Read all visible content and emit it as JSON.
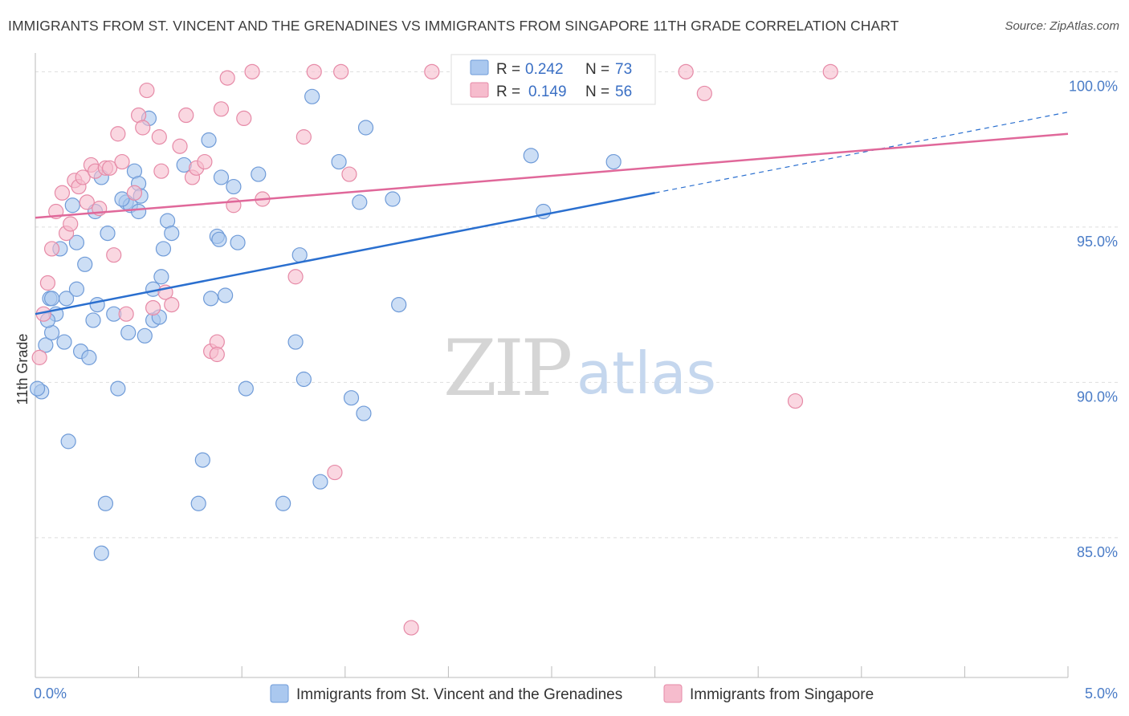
{
  "title": "IMMIGRANTS FROM ST. VINCENT AND THE GRENADINES VS IMMIGRANTS FROM SINGAPORE 11TH GRADE CORRELATION CHART",
  "source": "Source: ZipAtlas.com",
  "watermark": {
    "zip": "ZIP",
    "atlas": "atlas"
  },
  "legend_top": [
    {
      "r_label": "R =",
      "r_value": "0.242",
      "n_label": "N =",
      "n_value": "73"
    },
    {
      "r_label": "R =",
      "r_value": "0.149",
      "n_label": "N =",
      "n_value": "56"
    }
  ],
  "chart_data": {
    "type": "scatter",
    "title": "Immigrants from St. Vincent and the Grenadines vs Immigrants from Singapore 11th Grade Correlation Chart",
    "xlabel": "",
    "ylabel": "11th Grade",
    "xlim": [
      0,
      5
    ],
    "ylim": [
      80.5,
      100.5
    ],
    "x_tick_labels": [
      {
        "value": 0,
        "label": "0.0%"
      },
      {
        "value": 5,
        "label": "5.0%"
      }
    ],
    "y_tick_labels": [
      {
        "value": 85,
        "label": "85.0%"
      },
      {
        "value": 90,
        "label": "90.0%"
      },
      {
        "value": 95,
        "label": "95.0%"
      },
      {
        "value": 100,
        "label": "100.0%"
      }
    ],
    "series": [
      {
        "name": "Immigrants from St. Vincent and the Grenadines",
        "color": "#aac8ef",
        "edge": "#6f9bd8",
        "line_color": "#2a6fcf",
        "trend": {
          "x0": 0,
          "y0": 92.2,
          "x1": 3.0,
          "y1": 96.1,
          "extend_to": 5.0,
          "extend_y": 98.7
        },
        "points": [
          [
            0.03,
            89.7
          ],
          [
            0.05,
            91.2
          ],
          [
            0.07,
            92.7
          ],
          [
            0.08,
            91.6
          ],
          [
            0.08,
            92.7
          ],
          [
            0.1,
            92.2
          ],
          [
            0.12,
            94.3
          ],
          [
            0.14,
            91.3
          ],
          [
            0.15,
            92.7
          ],
          [
            0.18,
            95.7
          ],
          [
            0.2,
            94.5
          ],
          [
            0.2,
            93.0
          ],
          [
            0.22,
            91.0
          ],
          [
            0.24,
            93.8
          ],
          [
            0.26,
            90.8
          ],
          [
            0.28,
            92.0
          ],
          [
            0.29,
            95.5
          ],
          [
            0.3,
            92.5
          ],
          [
            0.32,
            96.6
          ],
          [
            0.35,
            94.8
          ],
          [
            0.38,
            92.2
          ],
          [
            0.4,
            89.8
          ],
          [
            0.44,
            95.8
          ],
          [
            0.45,
            91.6
          ],
          [
            0.46,
            95.7
          ],
          [
            0.48,
            96.8
          ],
          [
            0.5,
            95.5
          ],
          [
            0.5,
            96.4
          ],
          [
            0.51,
            96.0
          ],
          [
            0.53,
            91.5
          ],
          [
            0.55,
            98.5
          ],
          [
            0.57,
            93.0
          ],
          [
            0.57,
            92.0
          ],
          [
            0.6,
            92.1
          ],
          [
            0.61,
            93.4
          ],
          [
            0.62,
            94.3
          ],
          [
            0.64,
            95.2
          ],
          [
            0.66,
            94.8
          ],
          [
            0.72,
            97.0
          ],
          [
            0.79,
            86.1
          ],
          [
            0.81,
            87.5
          ],
          [
            0.84,
            97.8
          ],
          [
            0.85,
            92.7
          ],
          [
            0.88,
            94.7
          ],
          [
            0.89,
            94.6
          ],
          [
            0.9,
            96.6
          ],
          [
            0.92,
            92.8
          ],
          [
            0.96,
            96.3
          ],
          [
            0.98,
            94.5
          ],
          [
            1.02,
            89.8
          ],
          [
            1.08,
            96.7
          ],
          [
            1.2,
            86.1
          ],
          [
            1.26,
            91.3
          ],
          [
            1.28,
            94.1
          ],
          [
            1.3,
            90.1
          ],
          [
            1.34,
            99.2
          ],
          [
            1.38,
            86.8
          ],
          [
            1.47,
            97.1
          ],
          [
            1.53,
            89.5
          ],
          [
            1.57,
            95.8
          ],
          [
            1.59,
            89.0
          ],
          [
            1.6,
            98.2
          ],
          [
            1.73,
            95.9
          ],
          [
            1.76,
            92.5
          ],
          [
            2.4,
            97.3
          ],
          [
            2.46,
            95.5
          ],
          [
            2.8,
            97.1
          ],
          [
            0.01,
            89.8
          ],
          [
            0.34,
            86.1
          ],
          [
            0.32,
            84.5
          ],
          [
            0.16,
            88.1
          ],
          [
            0.06,
            92.0
          ],
          [
            0.42,
            95.9
          ]
        ]
      },
      {
        "name": "Immigrants from Singapore",
        "color": "#f6bccd",
        "edge": "#e68aa7",
        "line_color": "#e0689a",
        "trend": {
          "x0": 0,
          "y0": 95.3,
          "x1": 5.0,
          "y1": 98.0
        },
        "points": [
          [
            0.02,
            90.8
          ],
          [
            0.04,
            92.2
          ],
          [
            0.06,
            93.2
          ],
          [
            0.08,
            94.3
          ],
          [
            0.1,
            95.5
          ],
          [
            0.13,
            96.1
          ],
          [
            0.15,
            94.8
          ],
          [
            0.17,
            95.1
          ],
          [
            0.19,
            96.5
          ],
          [
            0.21,
            96.3
          ],
          [
            0.23,
            96.6
          ],
          [
            0.25,
            95.8
          ],
          [
            0.27,
            97.0
          ],
          [
            0.29,
            96.8
          ],
          [
            0.31,
            95.6
          ],
          [
            0.34,
            96.9
          ],
          [
            0.36,
            96.9
          ],
          [
            0.38,
            94.1
          ],
          [
            0.4,
            98.0
          ],
          [
            0.42,
            97.1
          ],
          [
            0.44,
            92.2
          ],
          [
            0.48,
            96.1
          ],
          [
            0.5,
            98.6
          ],
          [
            0.52,
            98.2
          ],
          [
            0.54,
            99.4
          ],
          [
            0.57,
            92.4
          ],
          [
            0.6,
            97.9
          ],
          [
            0.61,
            96.8
          ],
          [
            0.63,
            92.9
          ],
          [
            0.66,
            92.5
          ],
          [
            0.7,
            97.6
          ],
          [
            0.73,
            98.6
          ],
          [
            0.76,
            96.6
          ],
          [
            0.78,
            96.9
          ],
          [
            0.82,
            97.1
          ],
          [
            0.85,
            91.0
          ],
          [
            0.88,
            91.3
          ],
          [
            0.88,
            90.9
          ],
          [
            0.9,
            98.8
          ],
          [
            0.93,
            99.8
          ],
          [
            0.96,
            95.7
          ],
          [
            1.01,
            98.5
          ],
          [
            1.05,
            100.0
          ],
          [
            1.1,
            95.9
          ],
          [
            1.26,
            93.4
          ],
          [
            1.3,
            97.9
          ],
          [
            1.35,
            100.0
          ],
          [
            1.45,
            87.1
          ],
          [
            1.48,
            100.0
          ],
          [
            1.52,
            96.7
          ],
          [
            1.82,
            82.1
          ],
          [
            1.92,
            100.0
          ],
          [
            3.15,
            100.0
          ],
          [
            3.24,
            99.3
          ],
          [
            3.68,
            89.4
          ],
          [
            3.85,
            100.0
          ]
        ]
      }
    ],
    "legend": [
      {
        "label": "Immigrants from St. Vincent and the Grenadines"
      },
      {
        "label": "Immigrants from Singapore"
      }
    ]
  }
}
